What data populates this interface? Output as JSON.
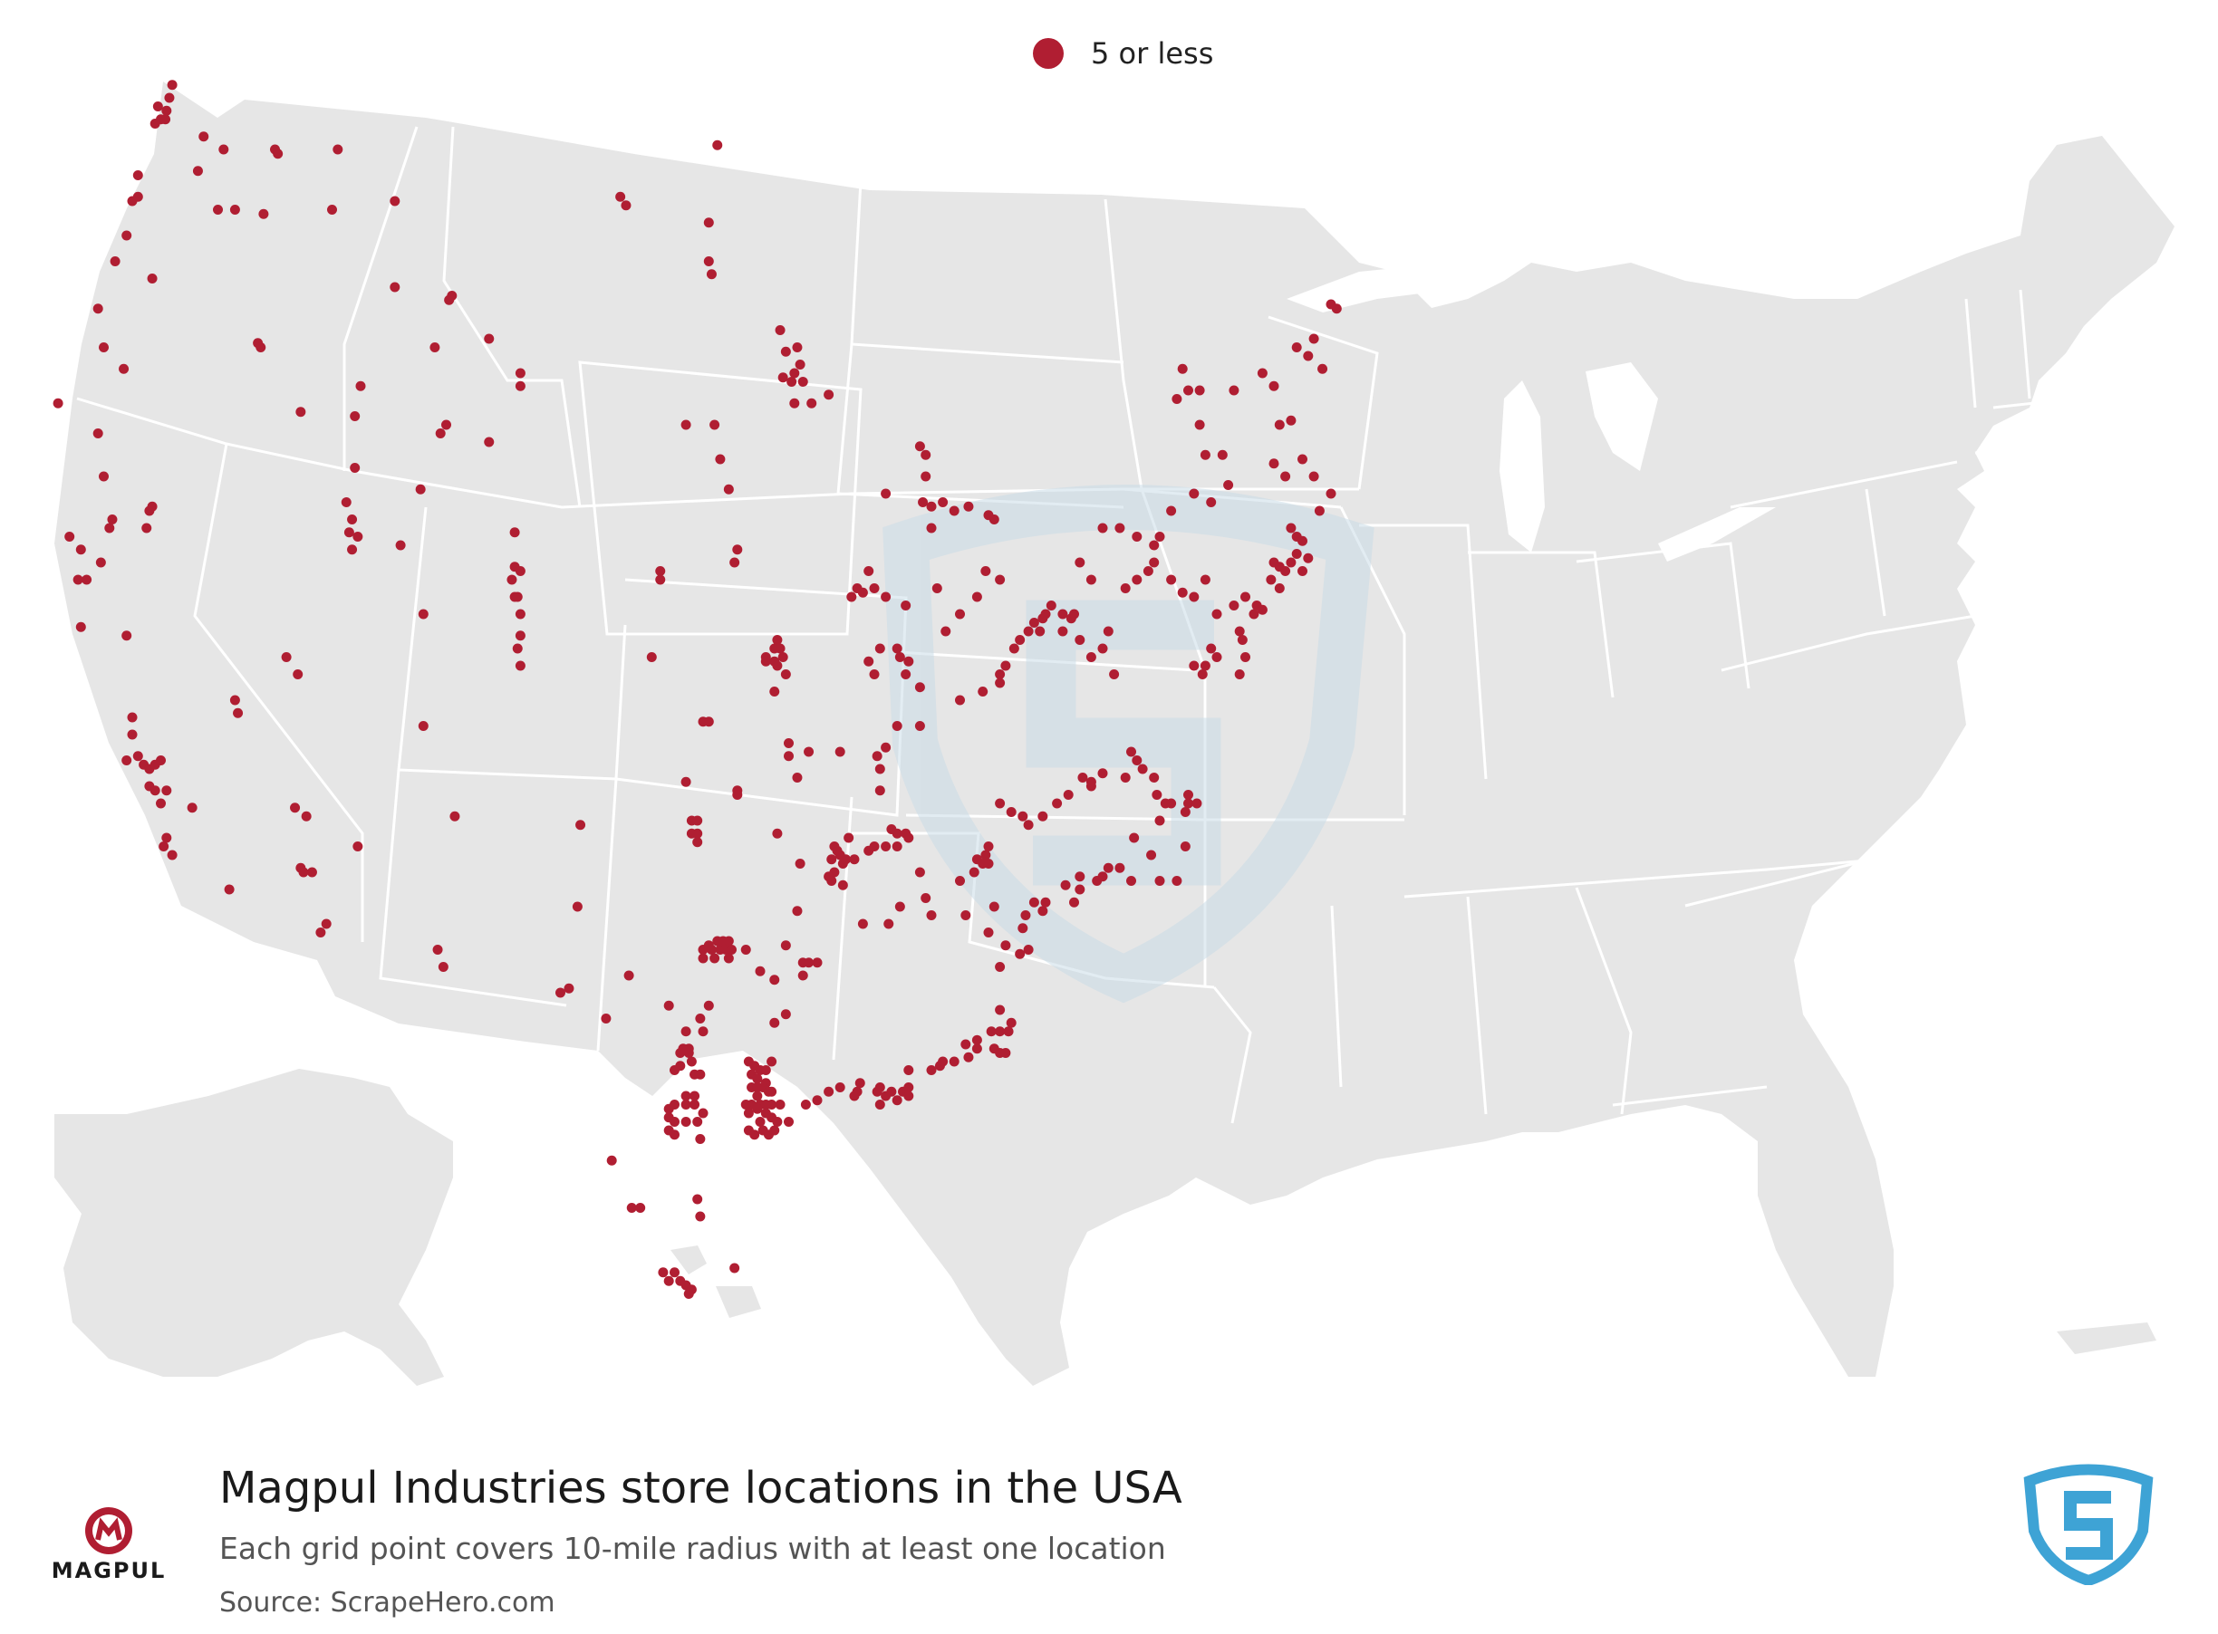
{
  "legend": {
    "label": "5 or less",
    "color": "#b01e32"
  },
  "title": "Magpul Industries store locations in the USA",
  "subtitle": "Each grid point covers 10-mile radius with at least one location",
  "source": "Source: ScrapeHero.com",
  "brand_logo_text": "MAGPUL",
  "colors": {
    "land": "#e6e6e6",
    "border": "#ffffff",
    "dot": "#b01e32",
    "watermark": "#cfe0ea",
    "logo_blue": "#3ea3d5"
  }
}
